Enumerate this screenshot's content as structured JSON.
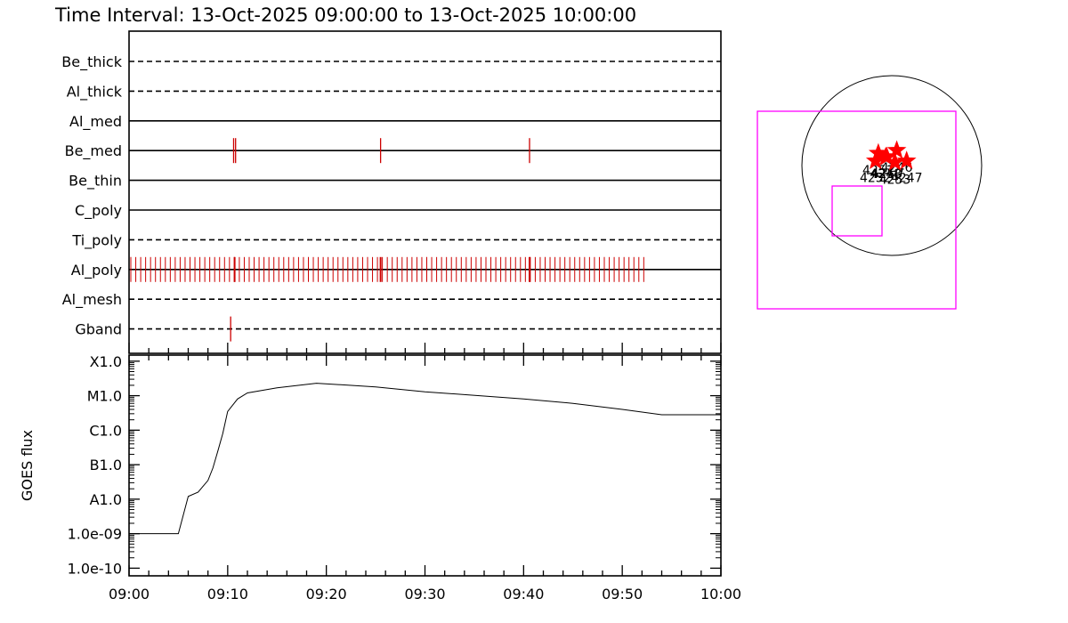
{
  "title": "Time Interval: 13-Oct-2025 09:00:00 to 13-Oct-2025 10:00:00",
  "chart_data": [
    {
      "type": "timeline",
      "x_range": [
        "09:00",
        "10:00"
      ],
      "rows": [
        {
          "name": "Be_thick",
          "style": "dashed",
          "events": []
        },
        {
          "name": "Al_thick",
          "style": "dashed",
          "events": []
        },
        {
          "name": "Al_med",
          "style": "solid",
          "events": []
        },
        {
          "name": "Be_med",
          "style": "solid",
          "events": [
            "09:10:36",
            "09:10:48",
            "09:25:30",
            "09:40:36"
          ]
        },
        {
          "name": "Be_thin",
          "style": "solid",
          "events": []
        },
        {
          "name": "C_poly",
          "style": "solid",
          "events": []
        },
        {
          "name": "Ti_poly",
          "style": "dashed",
          "events": []
        },
        {
          "name": "Al_poly",
          "style": "solid",
          "events_regular": {
            "start": "09:00:00",
            "end": "09:52:00",
            "step_seconds": 30
          },
          "events": [
            "09:10:42",
            "09:25:30",
            "09:40:36"
          ]
        },
        {
          "name": "Al_mesh",
          "style": "dashed",
          "events": []
        },
        {
          "name": "Gband",
          "style": "dashed",
          "events": [
            "09:10:18"
          ]
        }
      ]
    },
    {
      "type": "line",
      "ylabel": "GOES flux",
      "y_scale": "log",
      "yticks": [
        {
          "label": "X1.0",
          "value": 0.0001
        },
        {
          "label": "M1.0",
          "value": 1e-05
        },
        {
          "label": "C1.0",
          "value": 1e-06
        },
        {
          "label": "B1.0",
          "value": 1e-07
        },
        {
          "label": "A1.0",
          "value": 1e-08
        },
        {
          "label": "1.0e-09",
          "value": 1e-09
        },
        {
          "label": "1.0e-10",
          "value": 1e-10
        }
      ],
      "xticks": [
        "09:00",
        "09:10",
        "09:20",
        "09:30",
        "09:40",
        "09:50",
        "10:00"
      ],
      "ylim": [
        6e-11,
        0.00015
      ],
      "x": [
        "09:00",
        "09:01",
        "09:04",
        "09:05",
        "09:06",
        "09:07",
        "09:08",
        "09:08:30",
        "09:09",
        "09:09:30",
        "09:10",
        "09:11",
        "09:12",
        "09:15",
        "09:19",
        "09:25",
        "09:30",
        "09:40",
        "09:45",
        "09:50",
        "09:54",
        "10:00"
      ],
      "y": [
        1e-09,
        1e-09,
        1e-09,
        1e-09,
        1.2e-08,
        1.6e-08,
        3.5e-08,
        8e-08,
        2.5e-07,
        8e-07,
        3.5e-06,
        8e-06,
        1.2e-05,
        1.7e-05,
        2.3e-05,
        1.8e-05,
        1.3e-05,
        8e-06,
        6e-06,
        4e-06,
        2.8e-06,
        2.8e-06
      ]
    }
  ],
  "map": {
    "regions": [
      {
        "label": "4251",
        "x": -150,
        "y": 210
      },
      {
        "label": "4248",
        "x": -67,
        "y": 150
      },
      {
        "label": "4250",
        "x": -55,
        "y": 150
      },
      {
        "label": "4246",
        "x": 55,
        "y": 260
      },
      {
        "label": "4252",
        "x": -180,
        "y": 80
      },
      {
        "label": "4253",
        "x": 35,
        "y": 55
      },
      {
        "label": "4247",
        "x": 165,
        "y": 80
      }
    ],
    "colors": {
      "frame": "#ff00ff",
      "star": "#ff0000",
      "event": "#cc0000"
    }
  }
}
